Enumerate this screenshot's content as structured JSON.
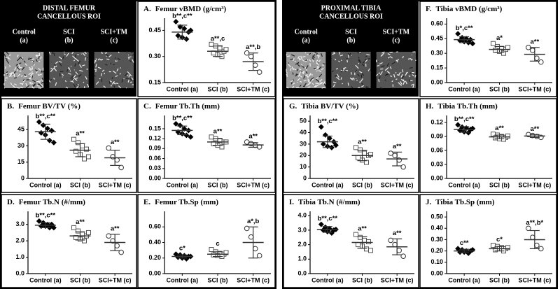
{
  "roi_panels": [
    {
      "title": [
        "DISTAL FEMUR",
        "CANCELLOUS ROI"
      ],
      "labels": [
        [
          "Control",
          "(a)"
        ],
        [
          "SCI",
          "(b)"
        ],
        [
          "SCI+TM",
          "(c)"
        ]
      ]
    },
    {
      "title": [
        "PROXIMAL TIBIA",
        "CANCELLOUS ROI"
      ],
      "labels": [
        [
          "Control",
          "(a)"
        ],
        [
          "SCI",
          "(b)"
        ],
        [
          "SCI+TM",
          "(c)"
        ]
      ]
    }
  ],
  "chart_data": [
    {
      "type": "strip",
      "label": "A.",
      "title": "Femur vBMD (g/cm³)",
      "categories": [
        "Control (a)",
        "SCI (b)",
        "SCI+TM (c)"
      ],
      "points": [
        [
          0.5,
          0.47,
          0.46,
          0.44,
          0.42,
          0.41,
          0.4,
          0.45
        ],
        [
          0.37,
          0.36,
          0.35,
          0.33,
          0.32,
          0.31,
          0.3,
          0.34
        ],
        [
          0.32,
          0.3,
          0.25,
          0.21
        ]
      ],
      "means": [
        0.44,
        0.33,
        0.27
      ],
      "sds": [
        0.04,
        0.03,
        0.05
      ],
      "annotations": [
        "b**,c**",
        "a**,c",
        "a**,b"
      ],
      "ylim": [
        0.15,
        0.52
      ],
      "yticks": [
        0.15,
        {
          "value": 0.3,
          "label": "0.30"
        },
        0.45
      ]
    },
    {
      "type": "strip",
      "label": "B.",
      "title": "Femur BV/TV (%)",
      "categories": [
        "Control (a)",
        "SCI (b)",
        "SCI+TM (c)"
      ],
      "points": [
        [
          52,
          49,
          46,
          44,
          42,
          40,
          35,
          33
        ],
        [
          36,
          33,
          30,
          27,
          25,
          22,
          18,
          20
        ],
        [
          28,
          20,
          17,
          10
        ]
      ],
      "means": [
        43,
        26,
        19
      ],
      "sds": [
        7,
        6,
        7
      ],
      "annotations": [
        "b**,c**",
        "a**",
        "a**"
      ],
      "ylim": [
        0,
        58
      ],
      "yticks": [
        0,
        15,
        30,
        45
      ]
    },
    {
      "type": "strip",
      "label": "C.",
      "title": "Femur Tb.Th (mm)",
      "categories": [
        "Control (a)",
        "SCI (b)",
        "SCI+TM (c)"
      ],
      "points": [
        [
          0.165,
          0.16,
          0.15,
          0.145,
          0.14,
          0.135,
          0.13,
          0.125
        ],
        [
          0.125,
          0.12,
          0.115,
          0.11,
          0.105,
          0.1,
          0.095,
          0.11
        ],
        [
          0.11,
          0.105,
          0.1,
          0.095
        ]
      ],
      "means": [
        0.145,
        0.11,
        0.101
      ],
      "sds": [
        0.013,
        0.01,
        0.007
      ],
      "annotations": [
        "b**,c**",
        "a**",
        "a**"
      ],
      "ylim": [
        0,
        0.19
      ],
      "yticks": [
        {
          "value": 0,
          "label": "0.00"
        },
        {
          "value": 0.03,
          "label": "0.03"
        },
        {
          "value": 0.06,
          "label": "0.06"
        },
        {
          "value": 0.09,
          "label": "0.09"
        },
        {
          "value": 0.12,
          "label": "0.12"
        },
        {
          "value": 0.15,
          "label": "0.15"
        }
      ]
    },
    {
      "type": "strip",
      "label": "D.",
      "title": "Femur Tb.N (#/mm)",
      "categories": [
        "Control (a)",
        "SCI (b)",
        "SCI+TM (c)"
      ],
      "points": [
        [
          3.2,
          3.1,
          3.0,
          3.0,
          2.9,
          2.9,
          2.8,
          2.8
        ],
        [
          2.8,
          2.6,
          2.4,
          2.3,
          2.2,
          2.1,
          2.0,
          2.5
        ],
        [
          2.3,
          2.0,
          1.7,
          1.3
        ]
      ],
      "means": [
        2.95,
        2.3,
        1.9
      ],
      "sds": [
        0.15,
        0.25,
        0.5
      ],
      "annotations": [
        "b**,c**",
        "a**",
        "a**"
      ],
      "ylim": [
        0,
        3.8
      ],
      "yticks": [
        {
          "value": 0,
          "label": "0.0"
        },
        {
          "value": 1,
          "label": "1.0"
        },
        {
          "value": 2,
          "label": "2.0"
        },
        {
          "value": 3,
          "label": "3.0"
        }
      ]
    },
    {
      "type": "strip",
      "label": "E.",
      "title": "Femur Tb.Sp (mm)",
      "categories": [
        "Control (a)",
        "SCI (b)",
        "SCI+TM (c)"
      ],
      "points": [
        [
          0.25,
          0.24,
          0.23,
          0.22,
          0.21,
          0.2,
          0.19,
          0.22
        ],
        [
          0.31,
          0.28,
          0.26,
          0.25,
          0.24,
          0.23,
          0.22,
          0.27
        ],
        [
          0.58,
          0.47,
          0.32,
          0.23
        ]
      ],
      "means": [
        0.22,
        0.25,
        0.4
      ],
      "sds": [
        0.02,
        0.03,
        0.2
      ],
      "annotations": [
        "c*",
        "c",
        "a*,b"
      ],
      "ylim": [
        0,
        0.8
      ],
      "yticks": [
        {
          "value": 0,
          "label": "0.00"
        },
        {
          "value": 0.2,
          "label": "0.20"
        },
        {
          "value": 0.4,
          "label": "0.40"
        },
        {
          "value": 0.6,
          "label": "0.60"
        }
      ]
    },
    {
      "type": "strip",
      "label": "F.",
      "title": "Tibia vBMD (g/cm³)",
      "categories": [
        "Control (a)",
        "SCI (b)",
        "SCI+TM (c)"
      ],
      "points": [
        [
          0.5,
          0.46,
          0.45,
          0.44,
          0.43,
          0.42,
          0.41,
          0.4
        ],
        [
          0.4,
          0.37,
          0.35,
          0.34,
          0.33,
          0.32,
          0.3,
          0.36
        ],
        [
          0.36,
          0.33,
          0.25,
          0.21
        ]
      ],
      "means": [
        0.44,
        0.34,
        0.29
      ],
      "sds": [
        0.03,
        0.03,
        0.07
      ],
      "annotations": [
        "b*,c**",
        "a*",
        "a**"
      ],
      "ylim": [
        0,
        0.66
      ],
      "yticks": [
        {
          "value": 0,
          "label": "0.00"
        },
        0.15,
        {
          "value": 0.3,
          "label": "0.30"
        },
        0.45,
        {
          "value": 0.6,
          "label": "0.60"
        }
      ]
    },
    {
      "type": "strip",
      "label": "G.",
      "title": "Tibia BV/TV (%)",
      "categories": [
        "Control (a)",
        "SCI (b)",
        "SCI+TM (c)"
      ],
      "points": [
        [
          45,
          38,
          35,
          32,
          30,
          28,
          27,
          29
        ],
        [
          27,
          25,
          22,
          20,
          18,
          16,
          14,
          21
        ],
        [
          22,
          20,
          16,
          10
        ]
      ],
      "means": [
        32,
        20,
        17
      ],
      "sds": [
        5,
        4.5,
        6
      ],
      "annotations": [
        "b**,c**",
        "a**",
        "a**"
      ],
      "ylim": [
        0,
        55
      ],
      "yticks": [
        0,
        10,
        20,
        30,
        40,
        50
      ]
    },
    {
      "type": "strip",
      "label": "H.",
      "title": "Tibia Tb.Th (mm)",
      "categories": [
        "Control (a)",
        "SCI (b)",
        "SCI+TM (c)"
      ],
      "points": [
        [
          0.115,
          0.11,
          0.108,
          0.105,
          0.103,
          0.1,
          0.098,
          0.107
        ],
        [
          0.095,
          0.093,
          0.09,
          0.088,
          0.087,
          0.085,
          0.084,
          0.091
        ],
        [
          0.094,
          0.092,
          0.09,
          0.088
        ]
      ],
      "means": [
        0.105,
        0.089,
        0.091
      ],
      "sds": [
        0.006,
        0.004,
        0.003
      ],
      "annotations": [
        "b**,c**",
        "a**",
        "a**"
      ],
      "ylim": [
        0,
        0.135
      ],
      "yticks": [
        {
          "value": 0,
          "label": "0.00"
        },
        {
          "value": 0.03,
          "label": "0.03"
        },
        {
          "value": 0.06,
          "label": "0.06"
        },
        {
          "value": 0.09,
          "label": "0.09"
        },
        {
          "value": 0.12,
          "label": "0.12"
        }
      ]
    },
    {
      "type": "strip",
      "label": "I.",
      "title": "Tibia Tb.N (#/mm)",
      "categories": [
        "Control (a)",
        "SCI (b)",
        "SCI+TM (c)"
      ],
      "points": [
        [
          3.4,
          3.2,
          3.1,
          3.0,
          3.0,
          2.9,
          2.8,
          3.05
        ],
        [
          2.7,
          2.5,
          2.3,
          2.2,
          2.0,
          1.9,
          1.7,
          1.6
        ],
        [
          2.3,
          2.0,
          1.6,
          1.2
        ]
      ],
      "means": [
        3.05,
        2.15,
        1.85
      ],
      "sds": [
        0.2,
        0.4,
        0.55
      ],
      "annotations": [
        "b**,c**",
        "a**",
        "a**"
      ],
      "ylim": [
        0,
        4.3
      ],
      "yticks": [
        {
          "value": 0,
          "label": "0.0"
        },
        {
          "value": 1,
          "label": "1.0"
        },
        {
          "value": 2,
          "label": "2.0"
        },
        {
          "value": 3,
          "label": "3.0"
        },
        {
          "value": 4,
          "label": "4.0"
        }
      ]
    },
    {
      "type": "strip",
      "label": "J.",
      "title": "Tibia Tb.Sp (mm)",
      "categories": [
        "Control (a)",
        "SCI (b)",
        "SCI+TM (c)"
      ],
      "points": [
        [
          0.22,
          0.21,
          0.2,
          0.2,
          0.19,
          0.19,
          0.18,
          0.21
        ],
        [
          0.25,
          0.24,
          0.23,
          0.22,
          0.21,
          0.22,
          0.2,
          0.23
        ],
        [
          0.4,
          0.32,
          0.25,
          0.22
        ]
      ],
      "means": [
        0.2,
        0.22,
        0.3
      ],
      "sds": [
        0.015,
        0.02,
        0.08
      ],
      "annotations": [
        "c**",
        "c*",
        "a**,b*"
      ],
      "ylim": [
        0,
        0.55
      ],
      "yticks": [
        {
          "value": 0,
          "label": "0.00"
        },
        {
          "value": 0.1,
          "label": "0.10"
        },
        {
          "value": 0.2,
          "label": "0.20"
        },
        {
          "value": 0.3,
          "label": "0.30"
        },
        {
          "value": 0.4,
          "label": "0.40"
        },
        {
          "value": 0.5,
          "label": "0.50"
        }
      ]
    }
  ]
}
